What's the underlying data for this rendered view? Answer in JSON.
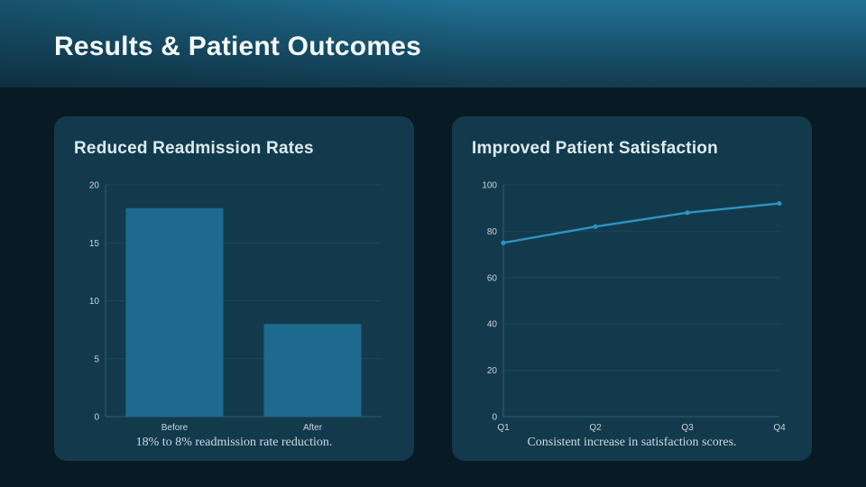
{
  "page": {
    "title": "Results & Patient Outcomes",
    "colors": {
      "page_bg": "#081a23",
      "header_gradient_top": "#207195",
      "header_gradient_bottom": "#123a4e",
      "card_bg": "#133a4c",
      "bar": "#1d6a8e",
      "line": "#2f93c0",
      "grid": "#1c4759",
      "axis": "#2e5d71",
      "tick": "#c9d5db",
      "chart_title": "#dcebf1",
      "caption": "#cddae0",
      "header_text": "#f4f9fb"
    }
  },
  "chart_data": [
    {
      "type": "bar",
      "title": "Reduced Readmission Rates",
      "categories": [
        "Before",
        "After"
      ],
      "values": [
        18,
        8
      ],
      "xlabel": "",
      "ylabel": "",
      "ylim": [
        0,
        20
      ],
      "yticks": [
        0,
        5,
        10,
        15,
        20
      ],
      "grid": true,
      "legend": "none",
      "caption": "18% to 8% readmission rate reduction."
    },
    {
      "type": "line",
      "title": "Improved Patient Satisfaction",
      "x": [
        "Q1",
        "Q2",
        "Q3",
        "Q4"
      ],
      "values": [
        75,
        82,
        88,
        92
      ],
      "xlabel": "",
      "ylabel": "",
      "ylim": [
        0,
        100
      ],
      "yticks": [
        0,
        20,
        40,
        60,
        80,
        100
      ],
      "grid": true,
      "legend": "none",
      "caption": "Consistent increase in satisfaction scores."
    }
  ]
}
